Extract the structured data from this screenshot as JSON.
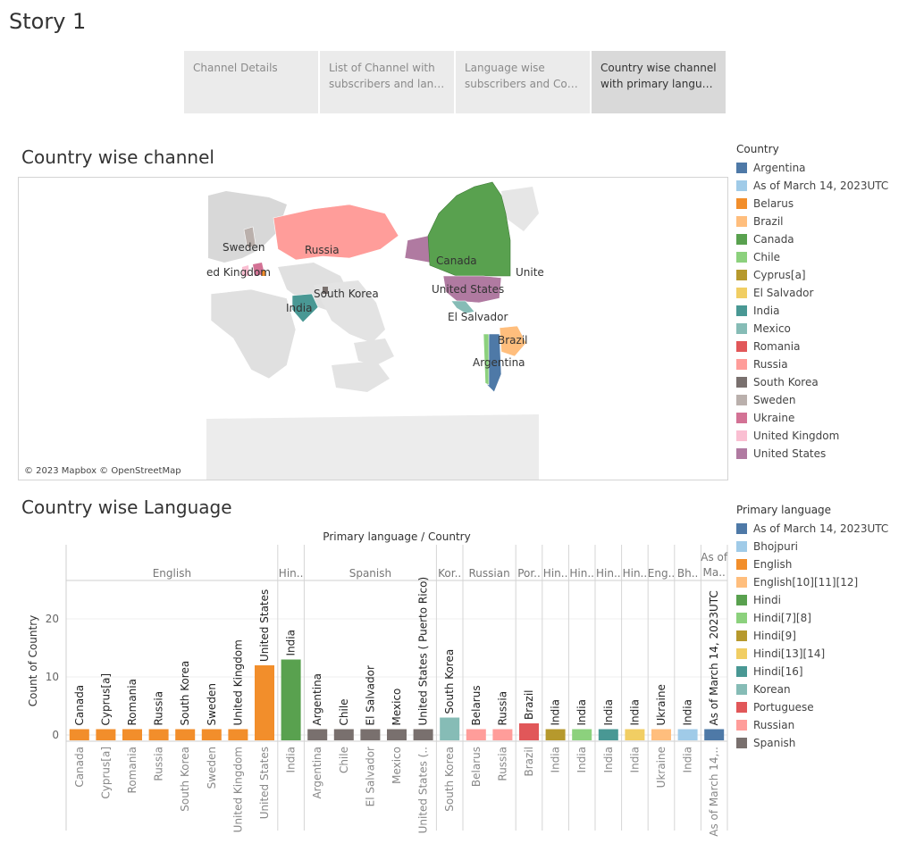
{
  "story": {
    "title": "Story 1"
  },
  "nav": [
    {
      "line1": "Channel Details",
      "line2": ""
    },
    {
      "line1": "List of Channel with",
      "line2": "subscribers and langu.."
    },
    {
      "line1": "Language wise",
      "line2": "subscribers and Coun.."
    },
    {
      "line1": "Country wise channel",
      "line2": "with primary languag.."
    }
  ],
  "map": {
    "title": "Country wise channel",
    "credit": "© 2023 Mapbox © OpenStreetMap",
    "labels": [
      "Sweden",
      "Russia",
      "ed Kingdom",
      "Canada",
      "Unite",
      "South Korea",
      "United States",
      "India",
      "El Salvador",
      "Brazil",
      "Argentina"
    ]
  },
  "country_legend": {
    "title": "Country",
    "items": [
      {
        "label": "Argentina",
        "color": "#4e79a7"
      },
      {
        "label": "As of March 14, 2023UTC",
        "color": "#a0cbe8"
      },
      {
        "label": "Belarus",
        "color": "#f28e2b"
      },
      {
        "label": "Brazil",
        "color": "#ffbe7d"
      },
      {
        "label": "Canada",
        "color": "#59a14f"
      },
      {
        "label": "Chile",
        "color": "#8cd17d"
      },
      {
        "label": "Cyprus[a]",
        "color": "#b6992d"
      },
      {
        "label": "El Salvador",
        "color": "#f1ce63"
      },
      {
        "label": "India",
        "color": "#499894"
      },
      {
        "label": "Mexico",
        "color": "#86bcb6"
      },
      {
        "label": "Romania",
        "color": "#e15759"
      },
      {
        "label": "Russia",
        "color": "#ff9d9a"
      },
      {
        "label": "South Korea",
        "color": "#79706e"
      },
      {
        "label": "Sweden",
        "color": "#bab0ac"
      },
      {
        "label": "Ukraine",
        "color": "#d37295"
      },
      {
        "label": "United Kingdom",
        "color": "#fabfd2"
      },
      {
        "label": "United States",
        "color": "#b07aa1"
      }
    ]
  },
  "language_legend": {
    "title": "Primary language",
    "items": [
      {
        "label": "As of March 14, 2023UTC",
        "color": "#4e79a7"
      },
      {
        "label": "Bhojpuri",
        "color": "#a0cbe8"
      },
      {
        "label": "English",
        "color": "#f28e2b"
      },
      {
        "label": "English[10][11][12]",
        "color": "#ffbe7d"
      },
      {
        "label": "Hindi",
        "color": "#59a14f"
      },
      {
        "label": "Hindi[7][8]",
        "color": "#8cd17d"
      },
      {
        "label": "Hindi[9]",
        "color": "#b6992d"
      },
      {
        "label": "Hindi[13][14]",
        "color": "#f1ce63"
      },
      {
        "label": "Hindi[16]",
        "color": "#499894"
      },
      {
        "label": "Korean",
        "color": "#86bcb6"
      },
      {
        "label": "Portuguese",
        "color": "#e15759"
      },
      {
        "label": "Russian",
        "color": "#ff9d9a"
      },
      {
        "label": "Spanish",
        "color": "#79706e"
      }
    ]
  },
  "bar_section": {
    "title": "Country wise Language"
  },
  "chart_data": {
    "type": "bar",
    "title": "Primary language / Country",
    "ylabel": "Count of Country",
    "yticks": [
      0,
      10,
      20
    ],
    "ylim": [
      0,
      28
    ],
    "groups": [
      {
        "label": "English",
        "color": "#f28e2b",
        "bars": [
          {
            "country": "Canada",
            "value": 1
          },
          {
            "country": "Cyprus[a]",
            "value": 1
          },
          {
            "country": "Romania",
            "value": 1
          },
          {
            "country": "Russia",
            "value": 1
          },
          {
            "country": "South Korea",
            "value": 1
          },
          {
            "country": "Sweden",
            "value": 1
          },
          {
            "country": "United Kingdom",
            "value": 1
          },
          {
            "country": "United States",
            "value": 12
          }
        ]
      },
      {
        "label": "Hin..",
        "color": "#59a14f",
        "bars": [
          {
            "country": "India",
            "value": 13
          }
        ]
      },
      {
        "label": "Spanish",
        "color": "#79706e",
        "bars": [
          {
            "country": "Argentina",
            "value": 1
          },
          {
            "country": "Chile",
            "value": 1
          },
          {
            "country": "El Salvador",
            "value": 1
          },
          {
            "country": "Mexico",
            "value": 1
          },
          {
            "country": "United States ( Puerto Rico)",
            "axis": "United States (..",
            "value": 1
          }
        ]
      },
      {
        "label": "Kor..",
        "color": "#86bcb6",
        "bars": [
          {
            "country": "South Korea",
            "value": 3
          }
        ]
      },
      {
        "label": "Russian",
        "color": "#ff9d9a",
        "bars": [
          {
            "country": "Belarus",
            "value": 1
          },
          {
            "country": "Russia",
            "value": 1
          }
        ]
      },
      {
        "label": "Por..",
        "color": "#e15759",
        "bars": [
          {
            "country": "Brazil",
            "value": 2
          }
        ]
      },
      {
        "label": "Hin..",
        "color": "#b6992d",
        "bars": [
          {
            "country": "India",
            "value": 1
          }
        ]
      },
      {
        "label": "Hin..",
        "color": "#8cd17d",
        "bars": [
          {
            "country": "India",
            "value": 1
          }
        ]
      },
      {
        "label": "Hin..",
        "color": "#499894",
        "bars": [
          {
            "country": "India",
            "value": 1
          }
        ]
      },
      {
        "label": "Hin..",
        "color": "#f1ce63",
        "bars": [
          {
            "country": "India",
            "value": 1
          }
        ]
      },
      {
        "label": "Eng..",
        "color": "#ffbe7d",
        "bars": [
          {
            "country": "Ukraine",
            "value": 1
          }
        ]
      },
      {
        "label": "Bh..",
        "color": "#a0cbe8",
        "bars": [
          {
            "country": "India",
            "value": 1
          }
        ]
      },
      {
        "label": "As of Ma..",
        "label_line1": "As of",
        "label_line2": "Ma..",
        "color": "#4e79a7",
        "bars": [
          {
            "country": "As of March 14, 2023UTC",
            "axis": "As of March 14,..",
            "value": 1
          }
        ]
      }
    ]
  }
}
